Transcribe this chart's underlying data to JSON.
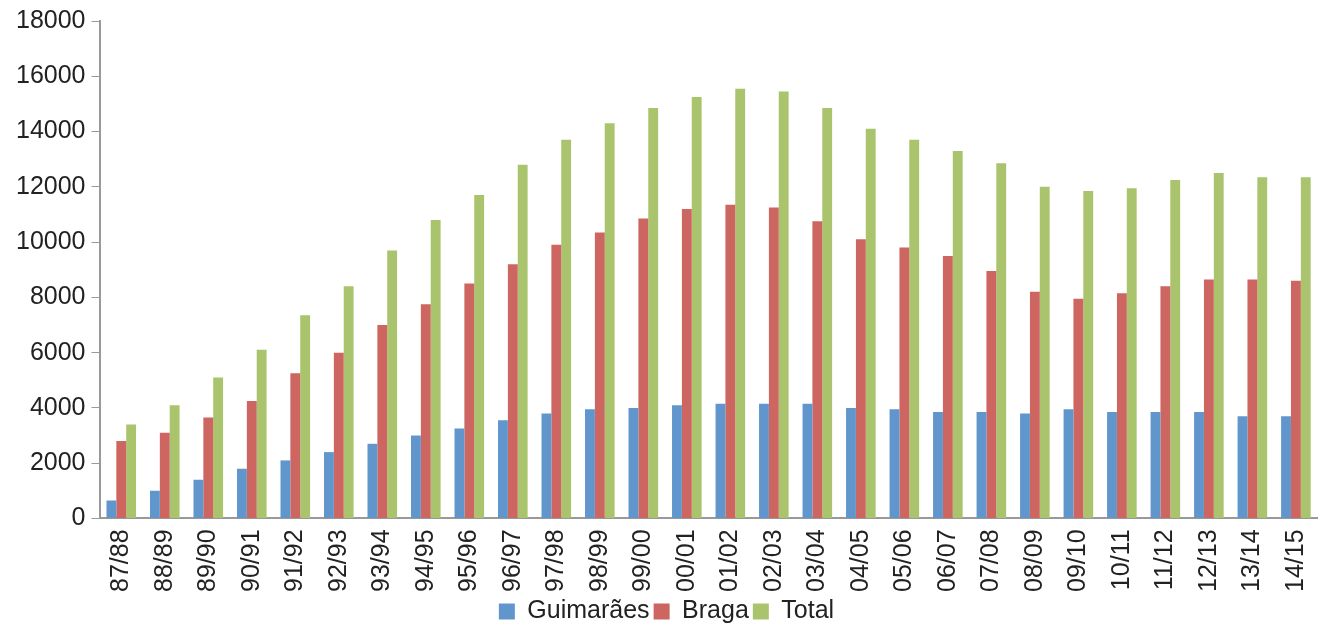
{
  "chart_data": {
    "type": "bar",
    "categories": [
      "87/88",
      "88/89",
      "89/90",
      "90/91",
      "91/92",
      "92/93",
      "93/94",
      "94/95",
      "95/96",
      "96/97",
      "97/98",
      "98/99",
      "99/00",
      "00/01",
      "01/02",
      "02/03",
      "03/04",
      "04/05",
      "05/06",
      "06/07",
      "07/08",
      "08/09",
      "09/10",
      "10/11",
      "11/12",
      "12/13",
      "13/14",
      "14/15"
    ],
    "series": [
      {
        "name": "Guimarães",
        "color": "#6096cb",
        "values": [
          650,
          1000,
          1400,
          1800,
          2100,
          2400,
          2700,
          3000,
          3250,
          3550,
          3800,
          3950,
          4000,
          4100,
          4150,
          4150,
          4150,
          4000,
          3950,
          3850,
          3850,
          3800,
          3950,
          3850,
          3850,
          3850,
          3700,
          3700
        ]
      },
      {
        "name": "Braga",
        "color": "#cd6560",
        "values": [
          2800,
          3100,
          3650,
          4250,
          5250,
          6000,
          7000,
          7750,
          8500,
          9200,
          9900,
          10350,
          10850,
          11200,
          11350,
          11250,
          10750,
          10100,
          9800,
          9500,
          8950,
          8200,
          7950,
          8150,
          8400,
          8650,
          8650,
          8600
        ]
      },
      {
        "name": "Total",
        "color": "#a9c46c",
        "values": [
          3400,
          4100,
          5100,
          6100,
          7350,
          8400,
          9700,
          10800,
          11700,
          12800,
          13700,
          14300,
          14850,
          15250,
          15550,
          15450,
          14850,
          14100,
          13700,
          13300,
          12850,
          12000,
          11850,
          11950,
          12250,
          12500,
          12350,
          12350
        ]
      }
    ],
    "ylim": [
      0,
      18000
    ],
    "yticks": [
      0,
      2000,
      4000,
      6000,
      8000,
      10000,
      12000,
      14000,
      16000,
      18000
    ],
    "grid": false,
    "legend": "bottom"
  }
}
